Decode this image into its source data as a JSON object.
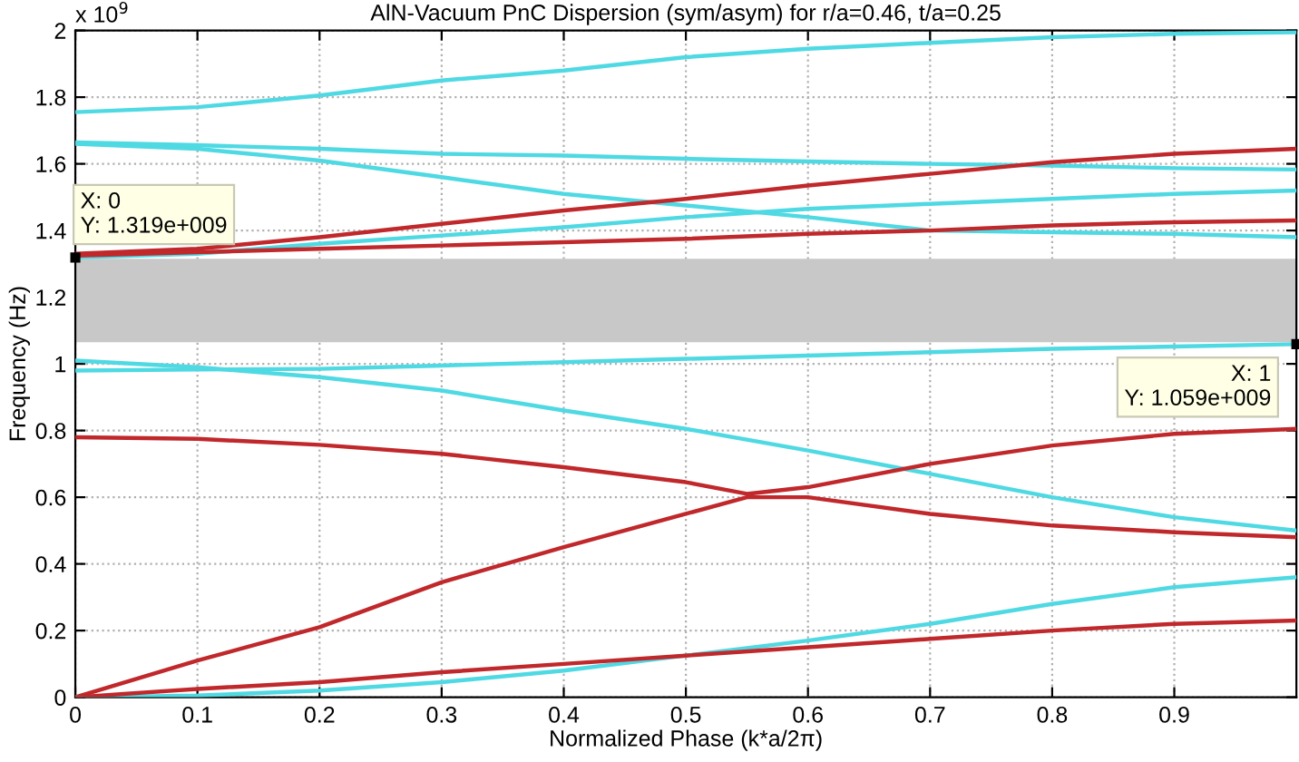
{
  "chart_data": {
    "type": "line",
    "title": "AlN-Vacuum PnC Dispersion (sym/asym) for r/a=0.46, t/a=0.25",
    "xlabel": "Normalized Phase (k*a/2π)",
    "ylabel": "Frequency (Hz)",
    "x": [
      0,
      0.1,
      0.2,
      0.3,
      0.4,
      0.5,
      0.6,
      0.7,
      0.8,
      0.9,
      1
    ],
    "series": [
      {
        "color": "#4fd9e3",
        "values": [
          1.755,
          1.77,
          1.805,
          1.85,
          1.88,
          1.92,
          1.945,
          1.963,
          1.98,
          1.99,
          1.995
        ]
      },
      {
        "color": "#4fd9e3",
        "values": [
          1.664,
          1.656,
          1.645,
          1.63,
          1.625,
          1.615,
          1.607,
          1.6,
          1.595,
          1.587,
          1.583
        ]
      },
      {
        "color": "#4fd9e3",
        "values": [
          1.66,
          1.645,
          1.61,
          1.56,
          1.51,
          1.475,
          1.44,
          1.4,
          1.395,
          1.39,
          1.38
        ]
      },
      {
        "color": "#4fd9e3",
        "values": [
          1.319,
          1.33,
          1.36,
          1.385,
          1.41,
          1.44,
          1.465,
          1.48,
          1.495,
          1.51,
          1.52
        ]
      },
      {
        "color": "#c0282b",
        "values": [
          1.33,
          1.345,
          1.38,
          1.42,
          1.46,
          1.495,
          1.535,
          1.57,
          1.605,
          1.63,
          1.645
        ]
      },
      {
        "color": "#c0282b",
        "values": [
          1.325,
          1.335,
          1.345,
          1.355,
          1.365,
          1.375,
          1.39,
          1.4,
          1.415,
          1.425,
          1.43
        ]
      },
      {
        "color": "#4fd9e3",
        "values": [
          0.98,
          0.983,
          0.985,
          0.995,
          1.005,
          1.015,
          1.025,
          1.035,
          1.045,
          1.052,
          1.059
        ]
      },
      {
        "color": "#4fd9e3",
        "values": [
          1.01,
          0.99,
          0.96,
          0.92,
          0.86,
          0.805,
          0.74,
          0.67,
          0.6,
          0.54,
          0.5
        ]
      },
      {
        "color": "#c0282b",
        "x": [
          0,
          0.1,
          0.2,
          0.3,
          0.4,
          0.5,
          0.55,
          0.6,
          0.7,
          0.8,
          0.9,
          1
        ],
        "values": [
          0.78,
          0.775,
          0.757,
          0.73,
          0.69,
          0.645,
          0.61,
          0.63,
          0.7,
          0.755,
          0.79,
          0.805
        ]
      },
      {
        "color": "#c0282b",
        "x": [
          0,
          0.1,
          0.2,
          0.3,
          0.4,
          0.5,
          0.55,
          0.6,
          0.7,
          0.8,
          0.9,
          1
        ],
        "values": [
          0,
          0.11,
          0.21,
          0.345,
          0.45,
          0.55,
          0.6,
          0.6,
          0.55,
          0.515,
          0.495,
          0.48
        ]
      },
      {
        "color": "#4fd9e3",
        "values": [
          0,
          0.005,
          0.02,
          0.045,
          0.08,
          0.125,
          0.17,
          0.22,
          0.28,
          0.33,
          0.36
        ]
      },
      {
        "color": "#c0282b",
        "values": [
          0,
          0.025,
          0.045,
          0.075,
          0.1,
          0.125,
          0.15,
          0.175,
          0.2,
          0.22,
          0.23
        ]
      }
    ],
    "bands": [
      {
        "axis": "y",
        "from": 1.065,
        "to": 1.315,
        "color": "#c8c8c8"
      }
    ],
    "annotations": [
      "x 10$^{9}$",
      {
        "text": "X: 0\nY: 1.319e+009",
        "x": 0,
        "y": 1.319
      },
      {
        "text": "X: 1\nY: 1.059e+009",
        "x": 1,
        "y": 1.059
      }
    ],
    "xlim": [
      0,
      1
    ],
    "ylim": [
      0,
      2
    ],
    "xticks": [
      0,
      0.1,
      0.2,
      0.3,
      0.4,
      0.5,
      0.6,
      0.7,
      0.8,
      0.9
    ],
    "yticks": [
      0,
      0.2,
      0.4,
      0.6,
      0.8,
      1,
      1.2,
      1.4,
      1.6,
      1.8,
      2
    ],
    "grid": true,
    "legend": false,
    "line_style": "solid",
    "marker": "none"
  }
}
